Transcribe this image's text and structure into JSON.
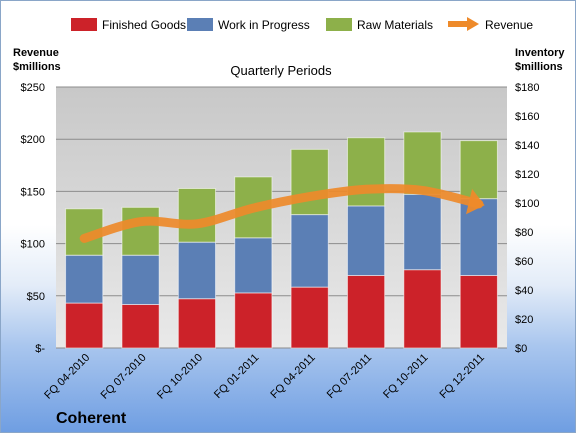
{
  "chart_data": {
    "type": "bar",
    "stacked": true,
    "title": "Quarterly Periods",
    "company": "Coherent",
    "categories": [
      "FQ 04-2010",
      "FQ 07-2010",
      "FQ 10-2010",
      "FQ 01-2011",
      "FQ 04-2011",
      "FQ 07-2011",
      "FQ 10-2011",
      "FQ 12-2011"
    ],
    "series": [
      {
        "name": "Finished Goods",
        "axis": "right",
        "color": "#cc2229",
        "values": [
          31,
          30,
          34,
          38,
          42,
          50,
          54,
          50
        ]
      },
      {
        "name": "Work in Progress",
        "axis": "right",
        "color": "#5b7fb5",
        "values": [
          33,
          34,
          39,
          38,
          50,
          48,
          52,
          53
        ]
      },
      {
        "name": "Raw Materials",
        "axis": "right",
        "color": "#8db04a",
        "values": [
          32,
          33,
          37,
          42,
          45,
          47,
          43,
          40
        ]
      }
    ],
    "line_series": {
      "name": "Revenue",
      "axis": "left",
      "color": "#ee8a2a",
      "values": [
        105,
        121,
        119,
        134,
        145,
        152,
        151,
        138
      ]
    },
    "y_left": {
      "label_line1": "Revenue",
      "label_line2": "$millions",
      "min": 0,
      "max": 250,
      "ticks": [
        "$-",
        "$50",
        "$100",
        "$150",
        "$200",
        "$250"
      ]
    },
    "y_right": {
      "label_line1": "Inventory",
      "label_line2": "$millions",
      "min": 0,
      "max": 180,
      "ticks": [
        "$0",
        "$20",
        "$40",
        "$60",
        "$80",
        "$100",
        "$120",
        "$140",
        "$160",
        "$180"
      ]
    },
    "grid": true,
    "legend_position": "top"
  }
}
